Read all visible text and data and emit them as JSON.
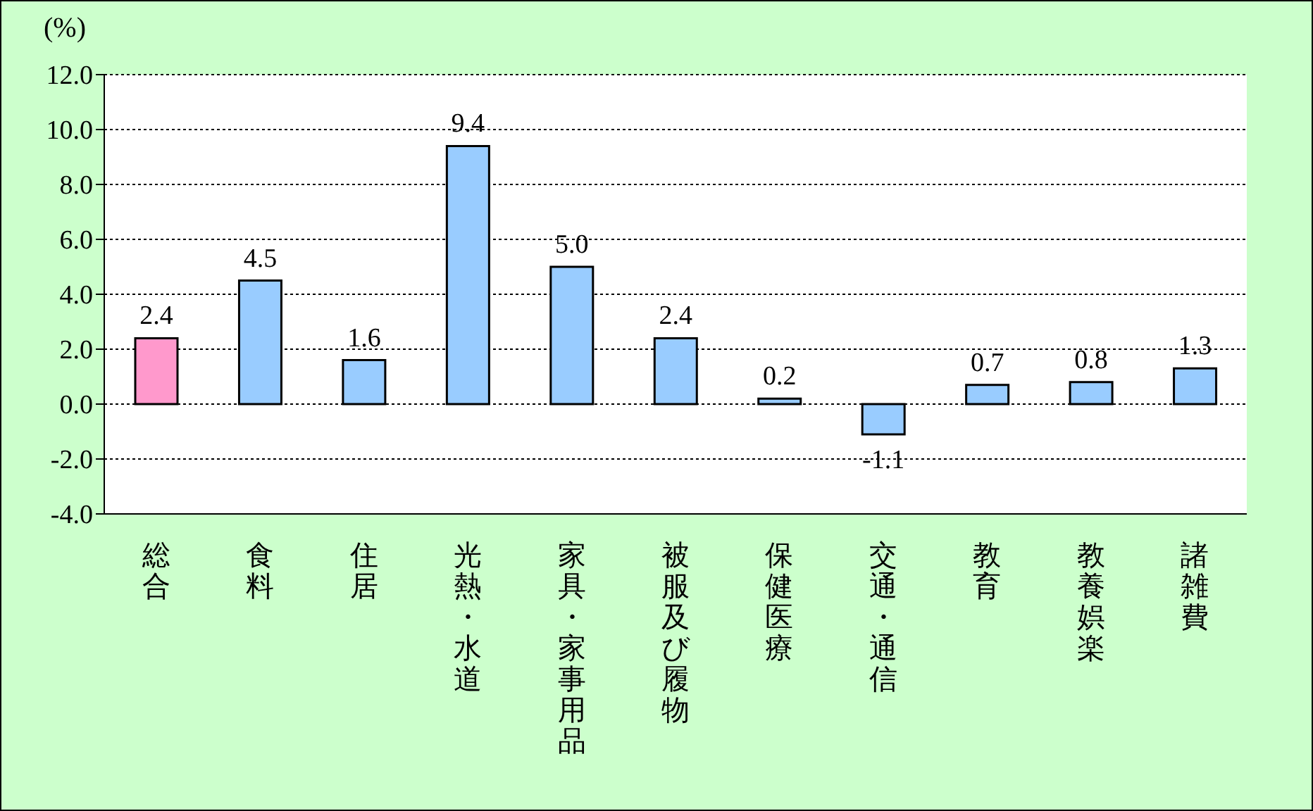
{
  "chart_data": {
    "type": "bar",
    "ylabel": "(%)",
    "categories": [
      "総合",
      "食料",
      "住居",
      "光熱・水道",
      "家具・家事用品",
      "被服及び履物",
      "保健医療",
      "交通・通信",
      "教育",
      "教養娯楽",
      "諸雑費"
    ],
    "values": [
      2.4,
      4.5,
      1.6,
      9.4,
      5.0,
      2.4,
      0.2,
      -1.1,
      0.7,
      0.8,
      1.3
    ],
    "colors": [
      "#ff99cc",
      "#99ccff",
      "#99ccff",
      "#99ccff",
      "#99ccff",
      "#99ccff",
      "#99ccff",
      "#99ccff",
      "#99ccff",
      "#99ccff",
      "#99ccff"
    ],
    "value_labels": [
      "2.4",
      "4.5",
      "1.6",
      "9.4",
      "5.0",
      "2.4",
      "0.2",
      "-1.1",
      "0.7",
      "0.8",
      "1.3"
    ],
    "ylim": [
      -4,
      12
    ],
    "yticks": [
      {
        "value": -4,
        "label": "-4.0"
      },
      {
        "value": -2,
        "label": "-2.0"
      },
      {
        "value": 0,
        "label": "0.0"
      },
      {
        "value": 2,
        "label": "2.0"
      },
      {
        "value": 4,
        "label": "4.0"
      },
      {
        "value": 6,
        "label": "6.0"
      },
      {
        "value": 8,
        "label": "8.0"
      },
      {
        "value": 10,
        "label": "10.0"
      },
      {
        "value": 12,
        "label": "12.0"
      }
    ],
    "grid": "y",
    "legend": false
  }
}
